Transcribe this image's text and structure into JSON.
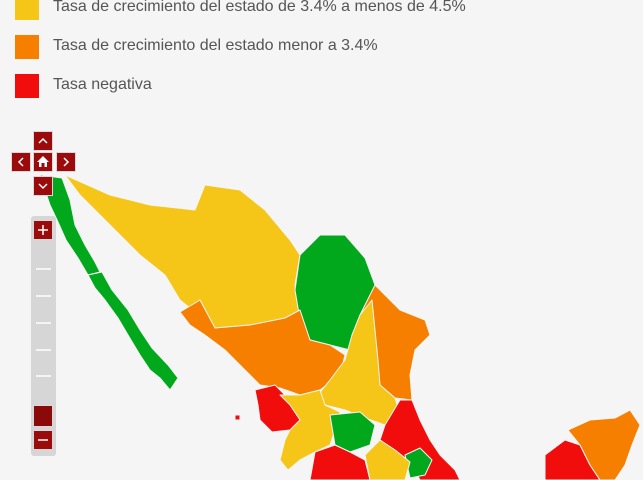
{
  "legend": [
    {
      "label": "Tasa de crecimiento del estado de 3.4% a menos de 4.5%",
      "color": "#f5c518"
    },
    {
      "label": "Tasa de crecimiento del estado menor a 3.4%",
      "color": "#f77f00"
    },
    {
      "label": "Tasa negativa",
      "color": "#f20d0d"
    }
  ]
}
